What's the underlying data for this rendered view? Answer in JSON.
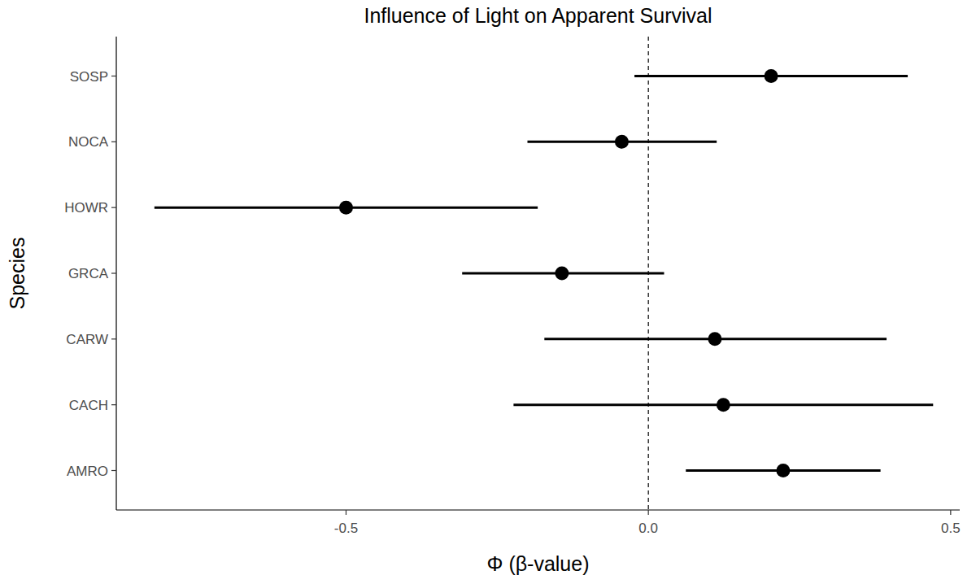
{
  "chart_data": {
    "type": "dot",
    "orientation": "horizontal",
    "title": "Influence of Light on Apparent Survival",
    "x_label": "Φ (β-value)",
    "y_label": "Species",
    "categories": [
      "SOSP",
      "NOCA",
      "HOWR",
      "GRCA",
      "CARW",
      "CACH",
      "AMRO"
    ],
    "values": [
      0.203,
      -0.044,
      -0.5,
      -0.143,
      0.11,
      0.124,
      0.223
    ],
    "ci_lower": [
      -0.023,
      -0.2,
      -0.817,
      -0.308,
      -0.172,
      -0.223,
      0.062
    ],
    "ci_upper": [
      0.429,
      0.113,
      -0.183,
      0.026,
      0.394,
      0.471,
      0.384
    ],
    "color": "#000000",
    "marker": "circle",
    "reference_line": 0,
    "xlim": [
      -0.88,
      0.515
    ],
    "xticks": [
      {
        "value": -0.5,
        "label": "-0.5"
      },
      {
        "value": 0,
        "label": "0.0"
      },
      {
        "value": 0.5,
        "label": "0.5"
      }
    ],
    "grid": false
  }
}
